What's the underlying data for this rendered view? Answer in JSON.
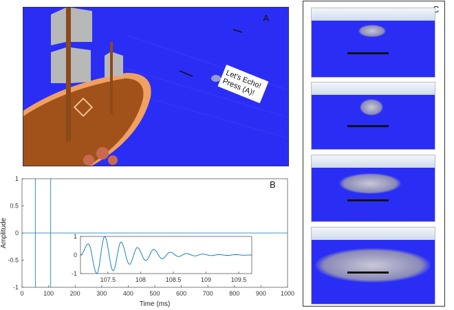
{
  "panels": {
    "a": "A",
    "b": "B",
    "c": "C"
  },
  "game": {
    "speech_bubble": "Let's Echo! Press (A)!",
    "colors": {
      "sea": "#2a2ef5",
      "ship": "#8b4513",
      "sail": "#b8b8b8"
    }
  },
  "chart_data": [
    {
      "type": "line",
      "xlabel": "Time (ms)",
      "ylabel": "Amplitude",
      "xlim": [
        0,
        1000
      ],
      "ylim": [
        -1,
        1
      ],
      "xticks": [
        0,
        100,
        200,
        300,
        400,
        500,
        600,
        700,
        800,
        900,
        1000
      ],
      "yticks": [
        -1,
        -0.5,
        0,
        0.5,
        1
      ],
      "ytick_labels": [
        "-1",
        "-0.5",
        "0",
        "0.5",
        "1"
      ],
      "grid": false,
      "color": "#0072bd",
      "pulses": [
        {
          "x": 50,
          "ymin": -1,
          "ymax": 1
        },
        {
          "x": 108,
          "ymin": -1,
          "ymax": 1
        }
      ]
    },
    {
      "type": "line",
      "inset": true,
      "xlim": [
        107.08,
        109.7
      ],
      "ylim": [
        -1,
        1
      ],
      "xticks": [
        107.5,
        108,
        108.5,
        109,
        109.5
      ],
      "xtick_labels": [
        "107.5",
        "108",
        "108.5",
        "109",
        "109.5"
      ],
      "yticks": [
        -1,
        0,
        1
      ],
      "ytick_labels": [
        "-1",
        "0",
        "1"
      ],
      "color": "#0072bd",
      "extrema": [
        [
          107.08,
          0
        ],
        [
          107.2,
          0.6
        ],
        [
          107.33,
          -1
        ],
        [
          107.45,
          1
        ],
        [
          107.58,
          -0.85
        ],
        [
          107.7,
          0.7
        ],
        [
          107.83,
          -0.5
        ],
        [
          107.95,
          0.4
        ],
        [
          108.08,
          -0.3
        ],
        [
          108.2,
          0.3
        ],
        [
          108.33,
          -0.2
        ],
        [
          108.45,
          0.15
        ],
        [
          108.58,
          -0.08
        ],
        [
          108.7,
          0.08
        ],
        [
          108.83,
          -0.05
        ],
        [
          108.95,
          0.05
        ],
        [
          109.08,
          -0.03
        ],
        [
          109.2,
          0.02
        ],
        [
          109.33,
          -0.02
        ],
        [
          109.45,
          0.02
        ],
        [
          109.58,
          -0.01
        ],
        [
          109.7,
          0
        ]
      ]
    }
  ]
}
